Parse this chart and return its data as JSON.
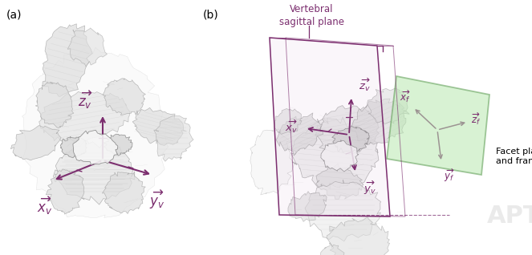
{
  "fig_width": 6.63,
  "fig_height": 3.18,
  "dpi": 100,
  "bg_color": "#ffffff",
  "label_a": "(a)",
  "label_b": "(b)",
  "purple": "#7B2D6E",
  "green_face": "#b8e8b0",
  "green_edge": "#5a9a50",
  "label_vertebral": "Vertebral\nsagittal plane",
  "label_facet": "Facet plane\nand frame",
  "xv_a": "$\\overrightarrow{x_v}$",
  "yv_a": "$\\overrightarrow{y_v}$",
  "zv_a": "$\\overrightarrow{z_v}$",
  "xv_b": "$\\overrightarrow{x_v}$",
  "yv_b": "$\\overrightarrow{y_v}$",
  "zv_b": "$\\overrightarrow{z_v}$",
  "xf": "$\\overrightarrow{x_f}$",
  "yf": "$\\overrightarrow{y_f}$",
  "zf": "$\\overrightarrow{z_f}$",
  "draft_color": "#c8c8c8",
  "sketch_alpha": 0.45
}
